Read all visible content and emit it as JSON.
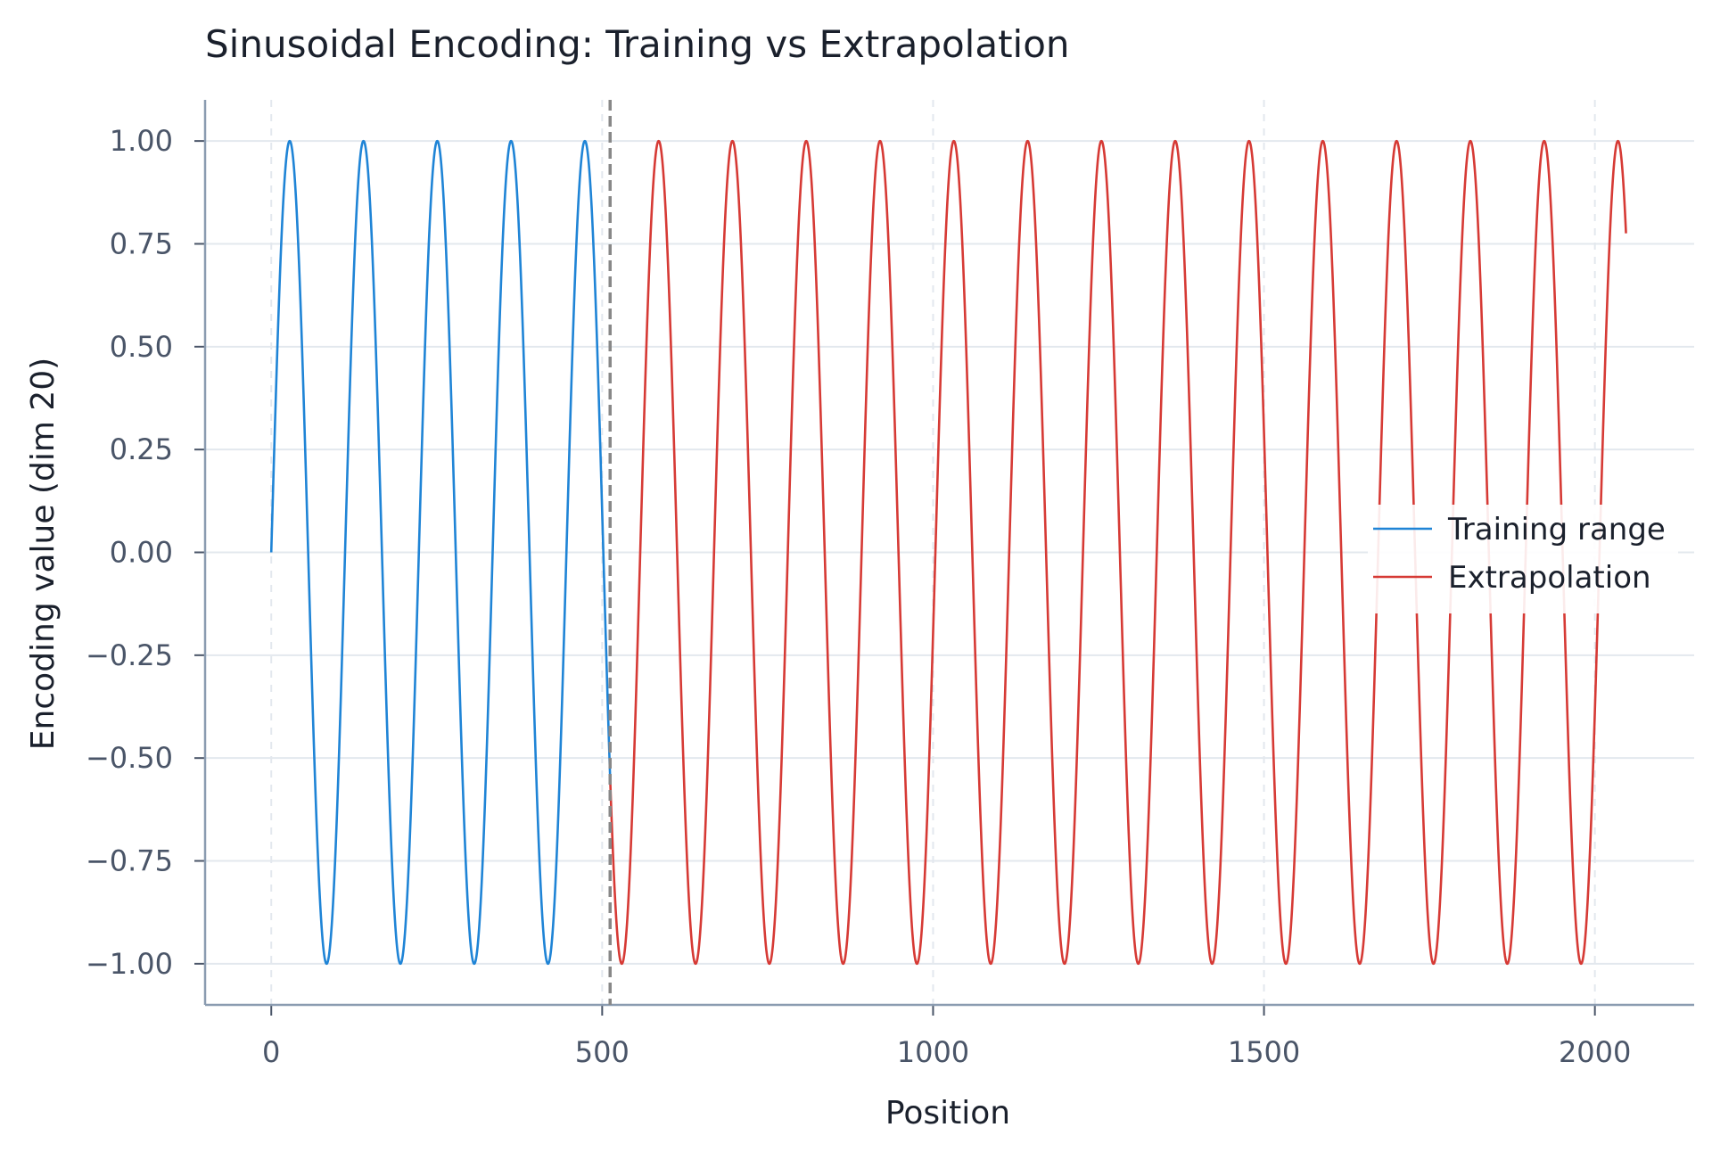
{
  "chart_data": {
    "type": "line",
    "title": "Sinusoidal Encoding: Training vs Extrapolation",
    "xlabel": "Position",
    "ylabel": "Encoding value (dim 20)",
    "xlim": [
      -100,
      2150
    ],
    "ylim": [
      -1.1,
      1.1
    ],
    "x_ticks": [
      0,
      500,
      1000,
      1500,
      2000
    ],
    "x_tick_labels": [
      "0",
      "500",
      "1000",
      "1500",
      "2000"
    ],
    "y_ticks": [
      1.0,
      0.75,
      0.5,
      0.25,
      0.0,
      -0.25,
      -0.5,
      -0.75,
      -1.0
    ],
    "y_tick_labels": [
      "1.00",
      "0.75",
      "0.50",
      "0.25",
      "0.00",
      "−0.25",
      "−0.50",
      "−0.75",
      "−1.00"
    ],
    "grid": true,
    "legend_position": "center-right",
    "boundary_marker": {
      "x": 512,
      "style": "dashed",
      "color": "#888888"
    },
    "series": [
      {
        "name": "Training range",
        "color": "#1f84d6",
        "function": "sin",
        "period": 111.5,
        "x_start": 0,
        "x_end": 512
      },
      {
        "name": "Extrapolation",
        "color": "#d63a35",
        "function": "sin",
        "period": 111.5,
        "x_start": 512,
        "x_end": 2047
      }
    ]
  }
}
